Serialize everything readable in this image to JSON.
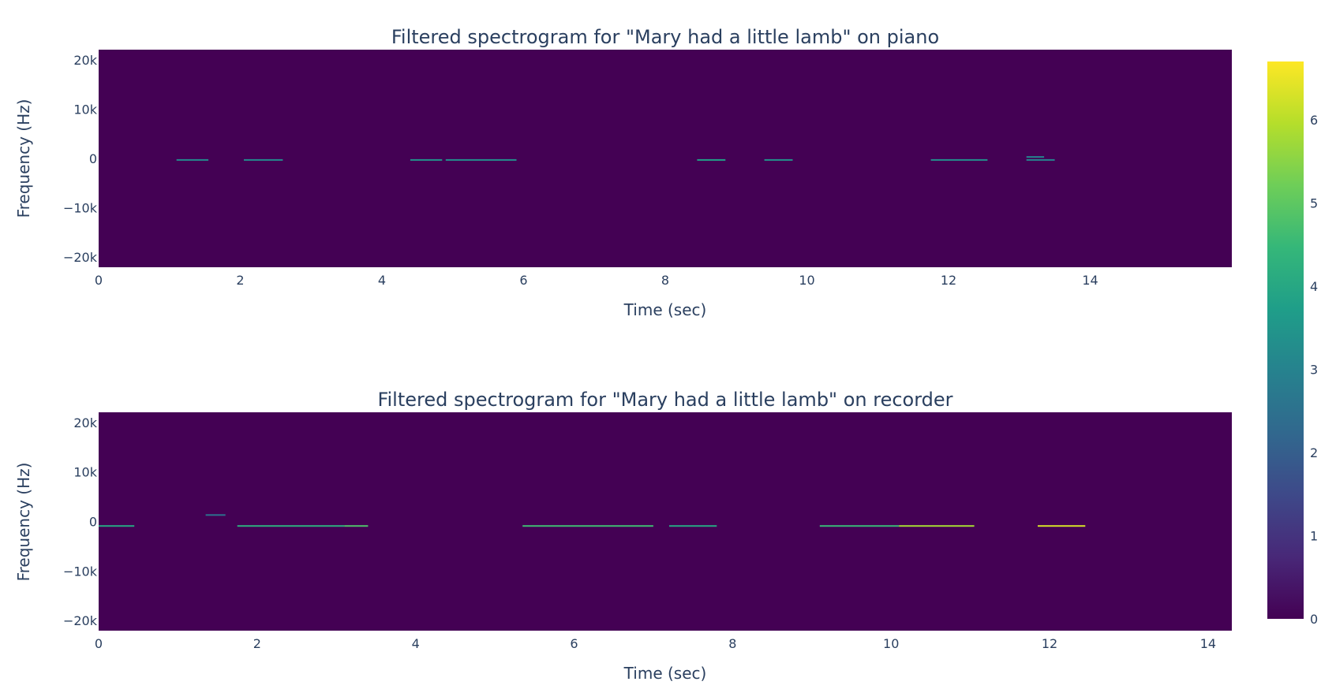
{
  "chart_data": [
    {
      "type": "heatmap",
      "title": "Filtered spectrogram for \"Mary had a little lamb\" on piano",
      "xlabel": "Time (sec)",
      "ylabel": "Frequency (Hz)",
      "xlim": [
        0,
        16
      ],
      "ylim": [
        -22050,
        22050
      ],
      "x_ticks": [
        0,
        2,
        4,
        6,
        8,
        10,
        12,
        14
      ],
      "x_tick_labels": [
        "0",
        "2",
        "4",
        "6",
        "8",
        "10",
        "12",
        "14"
      ],
      "y_ticks": [
        -20000,
        -10000,
        0,
        10000,
        20000
      ],
      "y_tick_labels": [
        "−20k",
        "−10k",
        "0",
        "10k",
        "20k"
      ],
      "background_value": 0,
      "segments": [
        {
          "t0": 1.1,
          "t1": 1.55,
          "f": -300,
          "value": 3.2
        },
        {
          "t0": 2.05,
          "t1": 2.6,
          "f": -300,
          "value": 3.2
        },
        {
          "t0": 4.4,
          "t1": 4.85,
          "f": -300,
          "value": 3.4
        },
        {
          "t0": 4.9,
          "t1": 5.9,
          "f": -300,
          "value": 3.3
        },
        {
          "t0": 8.45,
          "t1": 8.85,
          "f": -300,
          "value": 3.8
        },
        {
          "t0": 9.4,
          "t1": 9.8,
          "f": -300,
          "value": 3.4
        },
        {
          "t0": 11.75,
          "t1": 12.55,
          "f": -300,
          "value": 3.3
        },
        {
          "t0": 13.1,
          "t1": 13.35,
          "f": 300,
          "value": 3.0
        },
        {
          "t0": 13.1,
          "t1": 13.5,
          "f": -300,
          "value": 3.0
        }
      ]
    },
    {
      "type": "heatmap",
      "title": "Filtered spectrogram for \"Mary had a little lamb\" on recorder",
      "xlabel": "Time (sec)",
      "ylabel": "Frequency (Hz)",
      "xlim": [
        0,
        14.3
      ],
      "ylim": [
        -22050,
        22050
      ],
      "x_ticks": [
        0,
        2,
        4,
        6,
        8,
        10,
        12,
        14
      ],
      "x_tick_labels": [
        "0",
        "2",
        "4",
        "6",
        "8",
        "10",
        "12",
        "14"
      ],
      "y_ticks": [
        -20000,
        -10000,
        0,
        10000,
        20000
      ],
      "y_tick_labels": [
        "−20k",
        "−10k",
        "0",
        "10k",
        "20k"
      ],
      "background_value": 0,
      "segments": [
        {
          "t0": 0.0,
          "t1": 0.45,
          "f": -900,
          "value": 4.0
        },
        {
          "t0": 1.35,
          "t1": 1.6,
          "f": 1300,
          "value": 2.5
        },
        {
          "t0": 1.75,
          "t1": 3.1,
          "f": -900,
          "value": 4.2
        },
        {
          "t0": 3.1,
          "t1": 3.4,
          "f": -900,
          "value": 4.8
        },
        {
          "t0": 5.35,
          "t1": 7.0,
          "f": -900,
          "value": 4.6
        },
        {
          "t0": 7.2,
          "t1": 7.8,
          "f": -900,
          "value": 4.0
        },
        {
          "t0": 9.1,
          "t1": 10.1,
          "f": -900,
          "value": 4.5
        },
        {
          "t0": 10.1,
          "t1": 11.05,
          "f": -900,
          "value": 5.8
        },
        {
          "t0": 11.85,
          "t1": 12.45,
          "f": -900,
          "value": 6.3
        }
      ]
    }
  ],
  "colorbar": {
    "min": 0,
    "max": 6.7,
    "ticks": [
      0,
      1,
      2,
      3,
      4,
      5,
      6
    ],
    "tick_labels": [
      "0",
      "1",
      "2",
      "3",
      "4",
      "5",
      "6"
    ],
    "colorscale": [
      "#440154",
      "#482878",
      "#3e4989",
      "#31688e",
      "#26828e",
      "#1f9e89",
      "#35b779",
      "#6ece58",
      "#b5de2b",
      "#fde725"
    ]
  }
}
